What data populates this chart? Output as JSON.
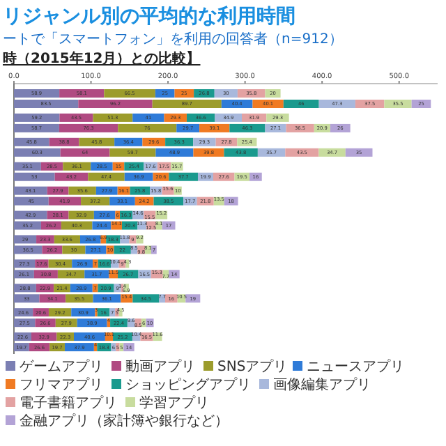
{
  "chart_data": {
    "type": "bar",
    "orientation": "horizontal",
    "stacked": true,
    "title": "リジャンル別の平均的な利用時間",
    "subtitle": "ートで「スマートフォン」を利用の回答者（n=912）",
    "annotations": [
      "時（2015年12月）との比較】"
    ],
    "categories": [
      null,
      null,
      null,
      null,
      null,
      null,
      null,
      null,
      null,
      null,
      null,
      null,
      null,
      null,
      null,
      null,
      null,
      null,
      null,
      null,
      null,
      null
    ],
    "xlim": [
      0,
      550
    ],
    "xticks": [
      {
        "value": 0,
        "label": "0.0"
      },
      {
        "value": 100,
        "label": "100.0"
      },
      {
        "value": 200,
        "label": "200.0"
      },
      {
        "value": 300,
        "label": "300.0"
      },
      {
        "value": 400,
        "label": "400.0"
      },
      {
        "value": 500,
        "label": "500.0"
      }
    ],
    "legend": "bottom",
    "data_labels": true,
    "series": [
      {
        "name": "ゲームアプリ",
        "color": "#7b7fb3",
        "values": [
          58.9,
          83.5,
          59.2,
          58.7,
          45.8,
          60.3,
          35.1,
          53.0,
          43.1,
          45.0,
          42.9,
          35.2,
          29.0,
          36.5,
          27.3,
          26.1,
          28.8,
          33.0,
          24.6,
          27.5,
          22.6,
          19.7
        ]
      },
      {
        "name": "動画アプリ",
        "color": "#b04a82",
        "values": [
          58.1,
          96.2,
          43.5,
          76.3,
          38.8,
          64.0,
          28.5,
          43.2,
          27.9,
          41.9,
          28.1,
          26.2,
          23.3,
          26.2,
          17.6,
          30.8,
          22.9,
          34.1,
          20.6,
          26.6,
          32.9,
          26.6
        ]
      },
      {
        "name": "SNSアプリ",
        "color": "#9c9c2c",
        "values": [
          66.5,
          89.7,
          51.3,
          76.0,
          45.8,
          59.7,
          36.1,
          47.4,
          35.6,
          37.2,
          32.9,
          40.3,
          33.6,
          30.0,
          30.4,
          34.7,
          21.4,
          35.5,
          29.2,
          27.9,
          22.3,
          19.7
        ]
      },
      {
        "name": "ニュースアプリ",
        "color": "#2f7bd8",
        "values": [
          25.0,
          40.4,
          41.0,
          29.7,
          36.4,
          48.9,
          28.5,
          36.9,
          27.9,
          33.1,
          27.6,
          24.4,
          26.8,
          27.1,
          26.9,
          31.7,
          28.9,
          36.1,
          30.9,
          38.9,
          40.6,
          37.9
        ]
      },
      {
        "name": "フリマアプリ",
        "color": "#f07a22",
        "values": [
          25.0,
          40.1,
          29.3,
          39.1,
          29.6,
          39.8,
          15.0,
          20.6,
          16.1,
          24.2,
          6.0,
          14.1,
          6.9,
          10.0,
          7.0,
          11.5,
          7.0,
          15.4,
          3.0,
          4.0,
          10.1,
          4.0
        ]
      },
      {
        "name": "ショッピングアプリ",
        "color": "#1a9a8e",
        "values": [
          26.8,
          46.0,
          36.6,
          46.3,
          36.3,
          43.8,
          25.4,
          37.7,
          25.8,
          38.5,
          16.3,
          20.3,
          18.3,
          22.0,
          16.6,
          26.7,
          20.9,
          34.5,
          16.0,
          22.4,
          25.2,
          18.3
        ]
      },
      {
        "name": "画像編集アプリ",
        "color": "#a8b8dc",
        "values": [
          30.0,
          47.3,
          34.9,
          27.1,
          29.3,
          35.7,
          17.6,
          19.9,
          15.8,
          17.7,
          14.6,
          11.3,
          11.8,
          8.5,
          10.4,
          16.5,
          9.0,
          7.7,
          7.0,
          9.6,
          10.4,
          6.0
        ]
      },
      {
        "name": "電子書籍アプリ",
        "color": "#e3a2a2",
        "values": [
          35.8,
          37.5,
          31.9,
          36.5,
          27.8,
          43.5,
          17.5,
          27.6,
          15.6,
          21.8,
          15.5,
          12.5,
          9.0,
          9.8,
          9.0,
          15.3,
          3.4,
          16.0,
          5.0,
          8.5,
          16.5,
          5.0
        ]
      },
      {
        "name": "学習アプリ",
        "color": "#c8dc9e",
        "values": [
          20.0,
          35.5,
          29.3,
          20.9,
          25.4,
          34.7,
          15.7,
          19.5,
          10.0,
          13.5,
          15.2,
          8.1,
          9.2,
          8.1,
          4.3,
          7.7,
          6.9,
          10.5,
          4.5,
          6.0,
          11.6,
          5.0
        ]
      },
      {
        "name": "金融アプリ（家計簿や銀行など）",
        "color": "#b3a3d6",
        "values": [
          null,
          25.0,
          null,
          26.0,
          null,
          35.0,
          null,
          16.0,
          null,
          18.0,
          null,
          17.0,
          null,
          7.0,
          null,
          14.0,
          null,
          19.0,
          null,
          10.0,
          null,
          14.0
        ]
      }
    ]
  }
}
